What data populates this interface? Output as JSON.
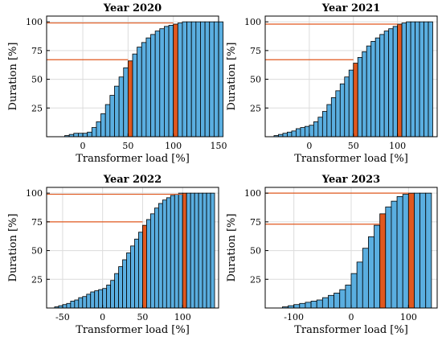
{
  "colors": {
    "bar_fill": "#5aaee0",
    "bar_edge": "#000000",
    "highlight_fill": "#e0581f",
    "reference_line": "#e0581f"
  },
  "chart_data": [
    {
      "type": "bar",
      "title": "Year 2020",
      "xlabel": "Transformer load [%]",
      "ylabel": "Duration [%]",
      "xlim": [
        -40,
        150
      ],
      "ylim": [
        0,
        105
      ],
      "xticks": [
        0,
        50,
        100,
        150
      ],
      "yticks": [
        25,
        50,
        75,
        100
      ],
      "grid": true,
      "bin_start": -20,
      "bin_width": 5,
      "values": [
        1,
        2,
        3,
        3,
        3,
        4,
        8,
        13,
        20,
        28,
        36,
        44,
        52,
        60,
        66,
        72,
        78,
        82,
        86,
        89,
        92,
        94,
        96,
        97,
        98,
        99,
        100,
        100,
        100,
        100,
        100,
        100,
        100,
        100,
        100
      ],
      "highlight_bins": [
        50,
        100
      ],
      "reference_levels": [
        67,
        99
      ]
    },
    {
      "type": "bar",
      "title": "Year 2021",
      "xlabel": "Transformer load [%]",
      "ylabel": "Duration [%]",
      "xlim": [
        -50,
        145
      ],
      "ylim": [
        0,
        105
      ],
      "xticks": [
        0,
        50,
        100
      ],
      "yticks": [
        25,
        50,
        75,
        100
      ],
      "grid": true,
      "bin_start": -40,
      "bin_width": 5,
      "values": [
        1,
        2,
        3,
        4,
        5,
        7,
        8,
        9,
        10,
        13,
        17,
        22,
        28,
        34,
        40,
        46,
        52,
        58,
        64,
        69,
        74,
        79,
        83,
        86,
        89,
        92,
        94,
        96,
        98,
        99,
        100,
        100,
        100,
        100,
        100,
        100
      ],
      "highlight_bins": [
        50,
        100
      ],
      "reference_levels": [
        67,
        98
      ]
    },
    {
      "type": "bar",
      "title": "Year 2022",
      "xlabel": "Transformer load [%]",
      "ylabel": "Duration [%]",
      "xlim": [
        -70,
        145
      ],
      "ylim": [
        0,
        105
      ],
      "xticks": [
        -50,
        0,
        50,
        100
      ],
      "yticks": [
        25,
        50,
        75,
        100
      ],
      "grid": true,
      "bin_start": -60,
      "bin_width": 5,
      "values": [
        1,
        2,
        3,
        4,
        6,
        7,
        9,
        10,
        12,
        14,
        15,
        16,
        17,
        20,
        24,
        30,
        36,
        42,
        48,
        54,
        60,
        66,
        72,
        77,
        82,
        87,
        91,
        94,
        96,
        98,
        99,
        100,
        100,
        100,
        100,
        100,
        100,
        100,
        100,
        100
      ],
      "highlight_bins": [
        50,
        100
      ],
      "reference_levels": [
        75,
        99
      ]
    },
    {
      "type": "bar",
      "title": "Year 2023",
      "xlabel": "Transformer load [%]",
      "ylabel": "Duration [%]",
      "xlim": [
        -150,
        150
      ],
      "ylim": [
        0,
        105
      ],
      "xticks": [
        -100,
        0,
        100
      ],
      "yticks": [
        25,
        50,
        75,
        100
      ],
      "grid": true,
      "bin_start": -120,
      "bin_width": 10,
      "values": [
        1,
        2,
        3,
        4,
        5,
        6,
        7,
        9,
        11,
        13,
        16,
        20,
        30,
        40,
        52,
        62,
        72,
        82,
        88,
        93,
        97,
        99,
        100,
        100,
        100,
        100
      ],
      "highlight_bins": [
        50,
        100
      ],
      "reference_levels": [
        73,
        100
      ]
    }
  ]
}
